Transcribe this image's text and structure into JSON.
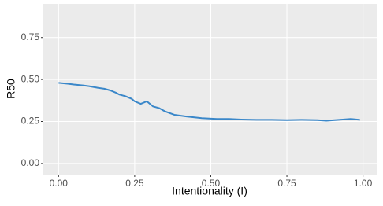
{
  "chart_data": {
    "type": "line",
    "x_label": "Intentionality (I)",
    "y_label": "R50",
    "x": [
      0,
      0.03,
      0.05,
      0.08,
      0.1,
      0.13,
      0.15,
      0.17,
      0.19,
      0.2,
      0.22,
      0.24,
      0.25,
      0.27,
      0.29,
      0.31,
      0.33,
      0.35,
      0.38,
      0.42,
      0.47,
      0.52,
      0.56,
      0.6,
      0.65,
      0.7,
      0.75,
      0.8,
      0.85,
      0.88,
      0.92,
      0.96,
      0.99
    ],
    "series": [
      {
        "name": "R50",
        "color": "#3a87c9",
        "values": [
          0.48,
          0.475,
          0.47,
          0.465,
          0.46,
          0.45,
          0.445,
          0.435,
          0.42,
          0.41,
          0.4,
          0.385,
          0.37,
          0.355,
          0.37,
          0.34,
          0.33,
          0.31,
          0.29,
          0.28,
          0.27,
          0.265,
          0.265,
          0.262,
          0.26,
          0.26,
          0.258,
          0.26,
          0.258,
          0.255,
          0.26,
          0.265,
          0.26
        ]
      }
    ],
    "xlim": [
      -0.05,
      1.045
    ],
    "ylim": [
      -0.066,
      0.95
    ],
    "xticks": [
      {
        "value": 0,
        "label": "0.00"
      },
      {
        "value": 0.25,
        "label": "0.25"
      },
      {
        "value": 0.5,
        "label": "0.50"
      },
      {
        "value": 0.75,
        "label": "0.75"
      },
      {
        "value": 1,
        "label": "1.00"
      }
    ],
    "yticks": [
      {
        "value": 0,
        "label": "0.00"
      },
      {
        "value": 0.25,
        "label": "0.25"
      },
      {
        "value": 0.5,
        "label": "0.50"
      },
      {
        "value": 0.75,
        "label": "0.75"
      }
    ],
    "grid": true
  }
}
